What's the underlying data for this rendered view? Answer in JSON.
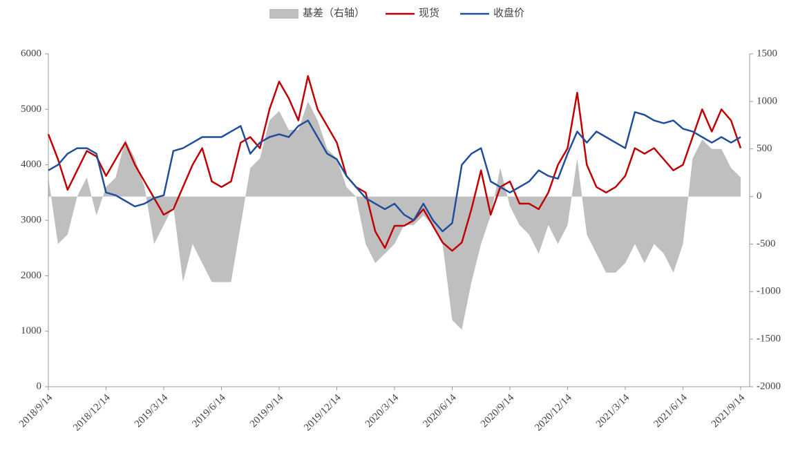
{
  "chart_data": {
    "type": "line",
    "categories": [
      "2018/9/14",
      null,
      null,
      null,
      null,
      null,
      "2018/12/14",
      null,
      null,
      null,
      null,
      null,
      "2019/3/14",
      null,
      null,
      null,
      null,
      null,
      "2019/6/14",
      null,
      null,
      null,
      null,
      null,
      "2019/9/14",
      null,
      null,
      null,
      null,
      null,
      "2019/12/14",
      null,
      null,
      null,
      null,
      null,
      "2020/3/14",
      null,
      null,
      null,
      null,
      null,
      "2020/6/14",
      null,
      null,
      null,
      null,
      null,
      "2020/9/14",
      null,
      null,
      null,
      null,
      null,
      "2020/12/14",
      null,
      null,
      null,
      null,
      null,
      "2021/3/14",
      null,
      null,
      null,
      null,
      null,
      "2021/6/14",
      null,
      null,
      null,
      null,
      null,
      "2021/9/14"
    ],
    "series": [
      {
        "name": "基差（右轴）",
        "type": "area",
        "axis": "y2",
        "color": "#bfbfbf",
        "values": [
          200,
          -500,
          -400,
          0,
          200,
          -200,
          100,
          200,
          600,
          400,
          100,
          -500,
          -300,
          -100,
          -900,
          -500,
          -700,
          -900,
          -900,
          -900,
          -300,
          300,
          400,
          800,
          900,
          700,
          700,
          1000,
          800,
          500,
          400,
          100,
          0,
          -500,
          -700,
          -600,
          -500,
          -300,
          -300,
          -200,
          -300,
          -500,
          -1300,
          -1400,
          -900,
          -500,
          -200,
          300,
          -100,
          -300,
          -400,
          -600,
          -300,
          -500,
          -300,
          400,
          -400,
          -600,
          -800,
          -800,
          -700,
          -500,
          -700,
          -500,
          -600,
          -800,
          -500,
          400,
          600,
          500,
          500,
          300,
          200
        ]
      },
      {
        "name": "现货",
        "type": "line",
        "color": "#c00000",
        "values": [
          4550,
          4100,
          3550,
          3900,
          4250,
          4150,
          3800,
          4100,
          4400,
          4000,
          3700,
          3400,
          3100,
          3200,
          3600,
          4000,
          4300,
          3700,
          3600,
          3700,
          4400,
          4500,
          4300,
          5000,
          5500,
          5200,
          4800,
          5600,
          5000,
          4700,
          4400,
          3800,
          3600,
          3500,
          2800,
          2500,
          2900,
          2900,
          3000,
          3200,
          2900,
          2600,
          2450,
          2600,
          3200,
          3900,
          3100,
          3600,
          3700,
          3300,
          3300,
          3200,
          3500,
          4000,
          4300,
          5300,
          4000,
          3600,
          3500,
          3600,
          3800,
          4300,
          4200,
          4300,
          4100,
          3900,
          4000,
          4500,
          5000,
          4600,
          5000,
          4800,
          4300
        ]
      },
      {
        "name": "收盘价",
        "type": "line",
        "color": "#1f4e9a",
        "values": [
          3900,
          4000,
          4200,
          4300,
          4300,
          4200,
          3500,
          3450,
          3350,
          3250,
          3300,
          3400,
          3450,
          4250,
          4300,
          4400,
          4500,
          4500,
          4500,
          4600,
          4700,
          4200,
          4400,
          4500,
          4550,
          4500,
          4700,
          4800,
          4500,
          4200,
          4100,
          3800,
          3600,
          3400,
          3300,
          3200,
          3300,
          3100,
          3000,
          3300,
          3000,
          2800,
          2950,
          4000,
          4200,
          4300,
          3700,
          3600,
          3500,
          3600,
          3700,
          3900,
          3800,
          3750,
          4200,
          4600,
          4400,
          4600,
          4500,
          4400,
          4300,
          4950,
          4900,
          4800,
          4750,
          4800,
          4650,
          4600,
          4500,
          4400,
          4500,
          4400,
          4500
        ]
      }
    ],
    "ylim": [
      0,
      6000
    ],
    "yticks": [
      0,
      1000,
      2000,
      3000,
      4000,
      5000,
      6000
    ],
    "y2lim": [
      -2000,
      1500
    ],
    "y2ticks": [
      -2000,
      -1500,
      -1000,
      -500,
      0,
      500,
      1000,
      1500
    ],
    "legend": "top"
  }
}
